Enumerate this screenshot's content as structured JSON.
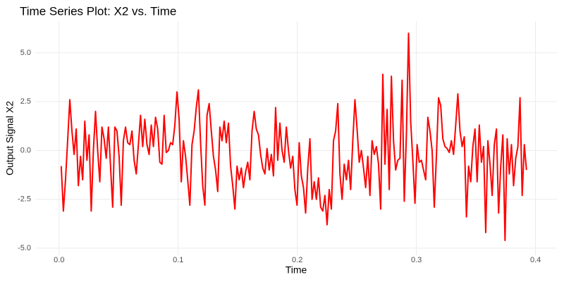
{
  "chart_data": {
    "type": "line",
    "title": "Time Series Plot: X2 vs. Time",
    "x_label": "Time",
    "y_label": "Output Signal X2",
    "grid": true,
    "xlim": [
      -0.02,
      0.418
    ],
    "ylim": [
      -5.36,
      6.62
    ],
    "xticks": [
      {
        "value": 0,
        "label": "0.0"
      },
      0.1,
      0.2,
      0.3,
      0.4
    ],
    "yticks": [
      {
        "value": -5,
        "label": "-5.0"
      },
      {
        "value": -2.5,
        "label": "-2.5"
      },
      {
        "value": 0,
        "label": "0.0"
      },
      {
        "value": 2.5,
        "label": "2.5"
      },
      {
        "value": 5,
        "label": "5.0"
      }
    ],
    "x": [
      0.0018,
      0.0036,
      0.0054,
      0.0072,
      0.009,
      0.0108,
      0.0126,
      0.0144,
      0.0162,
      0.018,
      0.0198,
      0.0216,
      0.0234,
      0.0252,
      0.027,
      0.0288,
      0.0306,
      0.0324,
      0.0342,
      0.036,
      0.0378,
      0.0396,
      0.0414,
      0.0432,
      0.045,
      0.0468,
      0.0486,
      0.0504,
      0.0522,
      0.054,
      0.0558,
      0.0576,
      0.0594,
      0.0612,
      0.063,
      0.0648,
      0.0666,
      0.0684,
      0.0702,
      0.072,
      0.0738,
      0.0756,
      0.0774,
      0.0792,
      0.081,
      0.0828,
      0.0846,
      0.0864,
      0.0882,
      0.09,
      0.0918,
      0.0936,
      0.0954,
      0.0972,
      0.099,
      0.1008,
      0.1026,
      0.1044,
      0.1062,
      0.108,
      0.1098,
      0.1116,
      0.1134,
      0.1152,
      0.117,
      0.1188,
      0.1206,
      0.1224,
      0.1242,
      0.126,
      0.1278,
      0.1296,
      0.1314,
      0.1332,
      0.135,
      0.1368,
      0.1386,
      0.1404,
      0.1422,
      0.144,
      0.1458,
      0.1476,
      0.1494,
      0.1512,
      0.153,
      0.1548,
      0.1566,
      0.1584,
      0.1602,
      0.162,
      0.1638,
      0.1656,
      0.1674,
      0.1692,
      0.171,
      0.1728,
      0.1746,
      0.1764,
      0.1782,
      0.18,
      0.1818,
      0.1836,
      0.1854,
      0.1872,
      0.189,
      0.1908,
      0.1926,
      0.1944,
      0.1962,
      0.198,
      0.1998,
      0.2016,
      0.2034,
      0.2052,
      0.207,
      0.2088,
      0.2106,
      0.2124,
      0.2142,
      0.216,
      0.2178,
      0.2196,
      0.2214,
      0.2232,
      0.225,
      0.2268,
      0.2286,
      0.2304,
      0.2322,
      0.234,
      0.2358,
      0.2376,
      0.2394,
      0.2412,
      0.243,
      0.2448,
      0.2466,
      0.2484,
      0.2502,
      0.252,
      0.2538,
      0.2556,
      0.2574,
      0.2592,
      0.261,
      0.2628,
      0.2646,
      0.2664,
      0.2682,
      0.27,
      0.2718,
      0.2736,
      0.2754,
      0.2772,
      0.279,
      0.2808,
      0.2826,
      0.2844,
      0.2862,
      0.288,
      0.2898,
      0.2916,
      0.2934,
      0.2952,
      0.297,
      0.2988,
      0.3006,
      0.3024,
      0.3042,
      0.306,
      0.3078,
      0.3096,
      0.3114,
      0.3132,
      0.315,
      0.3168,
      0.3186,
      0.3204,
      0.3222,
      0.324,
      0.3258,
      0.3276,
      0.3294,
      0.3312,
      0.333,
      0.3348,
      0.3366,
      0.3384,
      0.3402,
      0.342,
      0.3438,
      0.3456,
      0.3474,
      0.3492,
      0.351,
      0.3528,
      0.3546,
      0.3564,
      0.3582,
      0.36,
      0.3618,
      0.3636,
      0.3654,
      0.3672,
      0.369,
      0.3708,
      0.3726,
      0.3744,
      0.3762,
      0.378,
      0.3798,
      0.3816,
      0.3834,
      0.3852,
      0.387,
      0.3888,
      0.3906,
      0.3924
    ],
    "series": [
      {
        "color": "#ff0000",
        "values": [
          -0.8,
          -3.1,
          -1.5,
          0.5,
          2.6,
          1.0,
          -0.2,
          1.1,
          -1.8,
          -0.3,
          -1.5,
          1.5,
          -0.5,
          0.8,
          -3.1,
          0.0,
          2.0,
          0.0,
          -1.6,
          1.2,
          0.6,
          -0.4,
          1.2,
          -0.8,
          -2.9,
          1.2,
          1.0,
          -0.3,
          -2.8,
          0.5,
          1.2,
          0.4,
          0.3,
          1.0,
          -0.5,
          -1.2,
          0.3,
          1.8,
          0.2,
          1.6,
          0.3,
          -0.2,
          1.3,
          0.2,
          1.7,
          1.1,
          -0.6,
          -0.7,
          1.8,
          -0.1,
          0.0,
          0.4,
          0.3,
          1.3,
          3.0,
          1.6,
          -1.6,
          0.5,
          -0.3,
          -1.5,
          -2.8,
          0.3,
          1.0,
          2.2,
          3.1,
          0.4,
          -1.8,
          -2.8,
          1.8,
          2.4,
          1.0,
          -0.3,
          -1.0,
          -2.1,
          1.2,
          0.5,
          1.5,
          0.4,
          1.4,
          -0.8,
          -1.8,
          -3.0,
          -0.8,
          -1.5,
          -0.9,
          -1.9,
          -1.1,
          -0.6,
          -1.5,
          1.0,
          2.0,
          1.1,
          0.8,
          -0.2,
          -0.9,
          -1.2,
          0.1,
          -1.0,
          -0.2,
          -1.3,
          2.2,
          -0.5,
          1.4,
          0.0,
          -0.6,
          1.2,
          0.0,
          -0.9,
          -0.3,
          -2.0,
          -2.8,
          0.4,
          -1.3,
          -1.9,
          -3.2,
          -0.9,
          0.6,
          -2.5,
          -1.6,
          -2.5,
          -1.4,
          -2.9,
          -3.1,
          -2.3,
          -3.8,
          -2.0,
          -3.0,
          0.5,
          1.0,
          2.4,
          -1.2,
          -2.5,
          -0.7,
          -1.5,
          -0.5,
          -2.0,
          0.5,
          2.6,
          1.1,
          -0.6,
          0.0,
          -0.9,
          -1.9,
          -0.3,
          -2.3,
          0.5,
          -0.2,
          0.2,
          -0.7,
          -3.0,
          3.9,
          -0.7,
          2.1,
          -2.0,
          3.8,
          0.5,
          -1.0,
          -0.5,
          -0.4,
          3.6,
          -2.6,
          0.8,
          6.0,
          1.5,
          -0.5,
          -2.7,
          0.3,
          -0.6,
          -0.5,
          -1.0,
          -1.5,
          1.7,
          1.0,
          0.0,
          -2.9,
          -0.3,
          2.7,
          2.3,
          0.6,
          0.2,
          0.1,
          -0.1,
          0.5,
          -0.2,
          1.3,
          2.9,
          1.0,
          0.2,
          0.7,
          -3.4,
          -0.8,
          -1.6,
          0.2,
          1.1,
          -1.6,
          1.3,
          -0.6,
          0.2,
          -4.2,
          0.5,
          -0.7,
          -2.3,
          0.3,
          1.1,
          -3.2,
          -0.8,
          0.8,
          -4.6,
          0.6,
          -1.2,
          0.3,
          -1.8,
          -0.4,
          0.2,
          2.7,
          -2.3,
          0.3,
          -1.0
        ]
      }
    ]
  }
}
